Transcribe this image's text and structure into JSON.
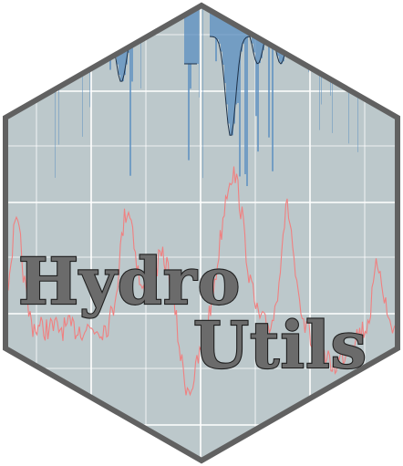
{
  "logo": {
    "line1": "Hydro",
    "line2": "Utils",
    "colors": {
      "background": "#ffffff",
      "hex_fill": "#bcc8cb",
      "hex_border": "#616161",
      "grid": "#ffffff",
      "flow_line": "#f08080",
      "rain_bars": "#5b8fc0",
      "rain_outline": "#1d3047",
      "text_fill": "#6b6b6b",
      "text_outline": "#1f1f1f"
    }
  }
}
